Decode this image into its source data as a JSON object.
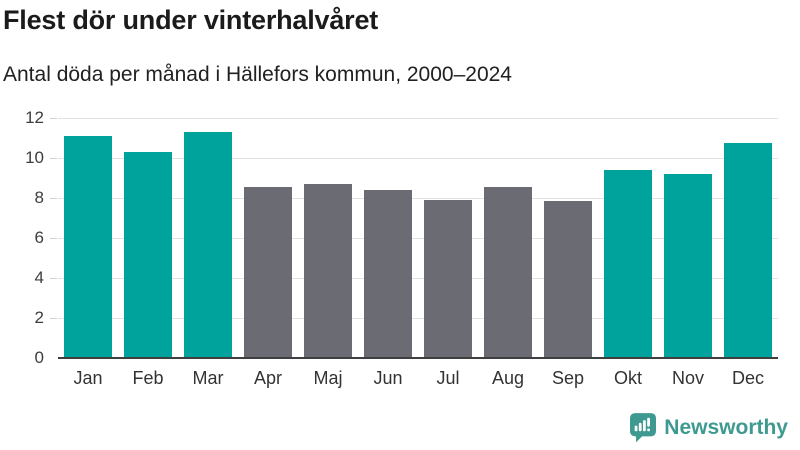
{
  "header": {
    "title": "Flest dör under vinterhalvåret",
    "subtitle": "Antal döda per månad i Hällefors kommun, 2000–2024"
  },
  "chart_data": {
    "type": "bar",
    "title": "Flest dör under vinterhalvåret",
    "subtitle": "Antal döda per månad i Hällefors kommun, 2000–2024",
    "categories": [
      "Jan",
      "Feb",
      "Mar",
      "Apr",
      "Maj",
      "Jun",
      "Jul",
      "Aug",
      "Sep",
      "Okt",
      "Nov",
      "Dec"
    ],
    "values": [
      11.1,
      10.3,
      11.3,
      8.55,
      8.7,
      8.4,
      7.9,
      8.55,
      7.85,
      9.4,
      9.2,
      10.75
    ],
    "highlighted": [
      true,
      true,
      true,
      false,
      false,
      false,
      false,
      false,
      false,
      true,
      true,
      true
    ],
    "xlabel": "",
    "ylabel": "",
    "ylim": [
      0,
      12
    ],
    "y_ticks": [
      0,
      2,
      4,
      6,
      8,
      10,
      12
    ],
    "grid": "horizontal",
    "legend": "none",
    "highlight_color": "#00a39b",
    "muted_color": "#6b6b73"
  },
  "footer": {
    "brand": "Newsworthy"
  },
  "colors": {
    "accent_teal": "#00a39b",
    "muted_gray": "#6b6b73",
    "gridline": "#e3e3e3",
    "axis_line": "#3f3f3f",
    "logo_teal": "#3e9a91"
  }
}
